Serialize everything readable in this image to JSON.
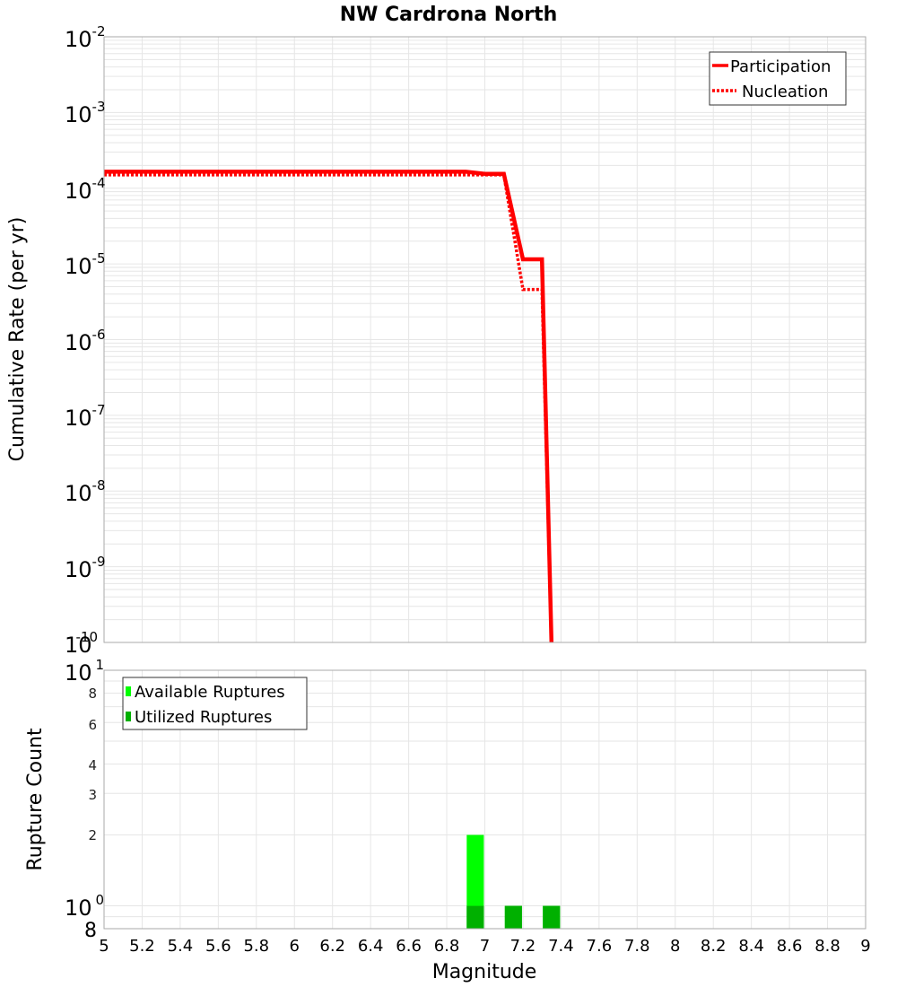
{
  "chart_data": [
    {
      "type": "line",
      "title": "NW Cardrona North",
      "xlabel": "Magnitude",
      "ylabel": "Cumulative Rate (per yr)",
      "yscale": "log",
      "xlim": [
        5,
        9
      ],
      "ylim": [
        1e-10,
        0.01
      ],
      "grid": true,
      "legend_position": "top-right",
      "y_ticks": [
        "10^-2",
        "10^-3",
        "10^-4",
        "10^-5",
        "10^-6",
        "10^-7",
        "10^-8",
        "10^-9",
        "10^-10"
      ],
      "series": [
        {
          "name": "Participation",
          "style": "solid",
          "color": "#ff0000",
          "x": [
            5.0,
            6.9,
            7.0,
            7.1,
            7.2,
            7.3,
            7.35
          ],
          "y": [
            0.000165,
            0.000165,
            0.000155,
            0.000155,
            1.15e-05,
            1.15e-05,
            1e-10
          ]
        },
        {
          "name": "Nucleation",
          "style": "dotted",
          "color": "#ff0000",
          "x": [
            5.0,
            6.9,
            7.0,
            7.1,
            7.2,
            7.3,
            7.35
          ],
          "y": [
            0.00015,
            0.00015,
            0.00015,
            0.00015,
            4.6e-06,
            4.6e-06,
            1e-10
          ]
        }
      ]
    },
    {
      "type": "bar",
      "xlabel": "Magnitude",
      "ylabel": "Rupture Count",
      "yscale": "log",
      "xlim": [
        5,
        9
      ],
      "ylim": [
        0.8,
        10
      ],
      "grid": true,
      "legend_position": "top-left",
      "x_ticks": [
        "5",
        "5.2",
        "5.4",
        "5.6",
        "5.8",
        "6",
        "6.2",
        "6.4",
        "6.6",
        "6.8",
        "7",
        "7.2",
        "7.4",
        "7.6",
        "7.8",
        "8",
        "8.2",
        "8.4",
        "8.6",
        "8.8",
        "9"
      ],
      "y_ticks": [
        "10^1",
        "8",
        "6",
        "4",
        "3",
        "2",
        "10^0",
        "8"
      ],
      "categories": [
        6.95,
        7.15,
        7.35
      ],
      "series": [
        {
          "name": "Available Ruptures",
          "color": "#00ff00",
          "values": [
            2,
            1,
            1
          ]
        },
        {
          "name": "Utilized Ruptures",
          "color": "#00b000",
          "values": [
            1,
            1,
            1
          ]
        }
      ]
    }
  ],
  "top_plot": {
    "title": "NW Cardrona North",
    "ylabel": "Cumulative Rate (per yr)",
    "y_ticks": [
      {
        "base": "10",
        "exp": "-2"
      },
      {
        "base": "10",
        "exp": "-3"
      },
      {
        "base": "10",
        "exp": "-4"
      },
      {
        "base": "10",
        "exp": "-5"
      },
      {
        "base": "10",
        "exp": "-6"
      },
      {
        "base": "10",
        "exp": "-7"
      },
      {
        "base": "10",
        "exp": "-8"
      },
      {
        "base": "10",
        "exp": "-9"
      },
      {
        "base": "10",
        "exp": "-10"
      }
    ],
    "legend": {
      "participation": "Participation",
      "nucleation": "Nucleation"
    }
  },
  "bottom_plot": {
    "ylabel": "Rupture Count",
    "xlabel": "Magnitude",
    "y_ticks_major": [
      {
        "base": "10",
        "exp": "1"
      },
      {
        "base": "10",
        "exp": "0"
      }
    ],
    "y_ticks_minor": [
      "8",
      "6",
      "4",
      "3",
      "2"
    ],
    "y_tick_bottom": "8",
    "x_ticks": [
      "5",
      "5.2",
      "5.4",
      "5.6",
      "5.8",
      "6",
      "6.2",
      "6.4",
      "6.6",
      "6.8",
      "7",
      "7.2",
      "7.4",
      "7.6",
      "7.8",
      "8",
      "8.2",
      "8.4",
      "8.6",
      "8.8",
      "9"
    ],
    "legend": {
      "available": "Available Ruptures",
      "utilized": "Utilized Ruptures"
    }
  },
  "colors": {
    "line": "#ff0000",
    "available": "#00ff00",
    "utilized": "#00b000",
    "grid": "#e6e6e6",
    "frame": "#aaaaaa"
  }
}
